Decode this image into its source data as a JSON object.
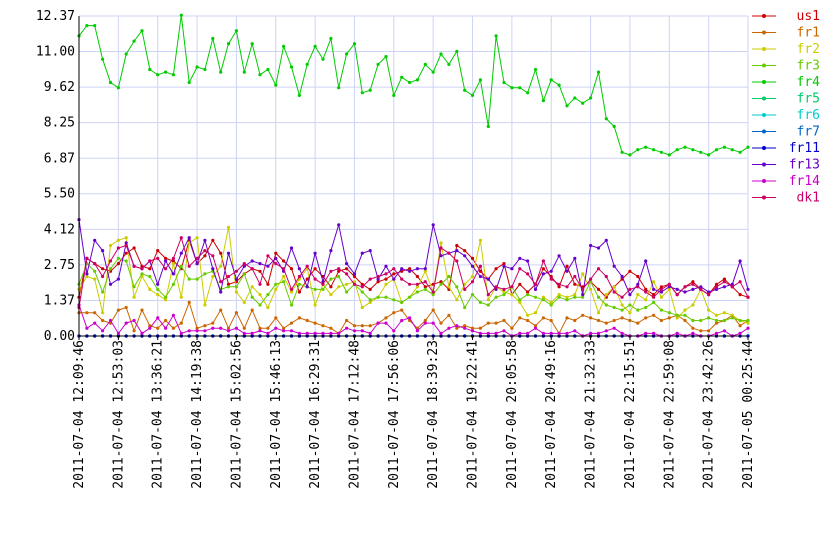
{
  "chart_data": {
    "type": "line",
    "title": "",
    "xlabel": "",
    "ylabel": "",
    "ylim": [
      0,
      12.37
    ],
    "y_ticks": [
      "0.00",
      "1.37",
      "2.75",
      "4.12",
      "5.50",
      "6.87",
      "8.25",
      "9.62",
      "11.00",
      "12.37"
    ],
    "x_tick_labels": [
      "2011-07-04 12:09:46",
      "2011-07-04 12:53:03",
      "2011-07-04 13:36:21",
      "2011-07-04 14:19:38",
      "2011-07-04 15:02:56",
      "2011-07-04 15:46:13",
      "2011-07-04 16:29:31",
      "2011-07-04 17:12:48",
      "2011-07-04 17:56:06",
      "2011-07-04 18:39:23",
      "2011-07-04 19:22:41",
      "2011-07-04 20:05:58",
      "2011-07-04 20:49:16",
      "2011-07-04 21:32:33",
      "2011-07-04 22:15:51",
      "2011-07-04 22:59:08",
      "2011-07-04 23:42:26",
      "2011-07-05 00:25:44"
    ],
    "points_per_series": 86,
    "grid": true,
    "legend_position": "right",
    "series": [
      {
        "name": "us1",
        "color": "#cc0000",
        "values": [
          1.5,
          3.0,
          2.8,
          2.6,
          2.5,
          2.8,
          3.2,
          3.4,
          2.7,
          2.6,
          3.3,
          3.0,
          2.9,
          2.6,
          3.7,
          2.8,
          3.1,
          3.7,
          3.2,
          2.0,
          2.1,
          2.4,
          2.6,
          2.5,
          2.0,
          3.2,
          2.9,
          2.6,
          1.7,
          2.2,
          2.6,
          2.3,
          1.9,
          2.5,
          2.6,
          2.3,
          2.0,
          1.8,
          2.1,
          2.2,
          2.4,
          2.5,
          2.6,
          2.3,
          1.9,
          2.0,
          2.1,
          1.8,
          3.5,
          3.3,
          3.0,
          2.5,
          2.2,
          2.6,
          2.8,
          1.6,
          2.0,
          1.7,
          2.0,
          2.6,
          2.3,
          1.9,
          2.7,
          2.0,
          1.9,
          2.1,
          1.8,
          1.5,
          1.9,
          2.2,
          2.5,
          2.3,
          1.8,
          1.6,
          1.9,
          2.0,
          1.6,
          1.9,
          2.1,
          1.8,
          1.6,
          2.0,
          2.2,
          1.9,
          1.6,
          1.5
        ]
      },
      {
        "name": "fr1",
        "color": "#cc6600",
        "values": [
          0.9,
          0.9,
          0.9,
          0.6,
          0.5,
          1.0,
          1.1,
          0.2,
          1.0,
          0.4,
          0.3,
          0.6,
          0.3,
          0.5,
          1.3,
          0.3,
          0.4,
          0.5,
          1.0,
          0.3,
          0.9,
          0.3,
          1.0,
          0.3,
          0.3,
          0.7,
          0.3,
          0.5,
          0.7,
          0.6,
          0.5,
          0.4,
          0.3,
          0.1,
          0.6,
          0.4,
          0.4,
          0.4,
          0.5,
          0.7,
          0.9,
          1.0,
          0.6,
          0.3,
          0.6,
          1.0,
          0.5,
          0.8,
          0.3,
          0.4,
          0.3,
          0.3,
          0.5,
          0.5,
          0.6,
          0.3,
          0.7,
          0.6,
          0.4,
          0.7,
          0.6,
          0.1,
          0.7,
          0.6,
          0.8,
          0.7,
          0.6,
          0.5,
          0.6,
          0.7,
          0.6,
          0.5,
          0.7,
          0.8,
          0.6,
          0.7,
          0.8,
          0.6,
          0.3,
          0.2,
          0.2,
          0.5,
          0.6,
          0.8,
          0.4,
          0.6
        ]
      },
      {
        "name": "fr2",
        "color": "#cccc00",
        "values": [
          1.8,
          2.3,
          2.2,
          0.9,
          3.5,
          3.7,
          3.8,
          1.5,
          2.3,
          1.8,
          1.6,
          1.4,
          2.8,
          1.5,
          3.6,
          3.8,
          1.2,
          2.3,
          2.7,
          4.2,
          1.7,
          1.3,
          1.9,
          1.6,
          1.1,
          1.8,
          2.3,
          1.7,
          2.2,
          2.6,
          1.2,
          2.0,
          1.6,
          1.9,
          2.0,
          2.1,
          1.1,
          1.3,
          1.5,
          2.0,
          2.2,
          1.3,
          1.5,
          1.9,
          2.5,
          1.7,
          3.6,
          1.9,
          1.4,
          2.0,
          2.3,
          3.7,
          1.4,
          1.9,
          1.7,
          1.6,
          1.3,
          0.8,
          0.9,
          1.5,
          1.3,
          1.6,
          1.5,
          1.6,
          2.4,
          1.8,
          0.9,
          1.6,
          1.9,
          1.2,
          0.9,
          1.6,
          1.4,
          2.1,
          1.5,
          1.8,
          0.7,
          1.0,
          1.2,
          1.8,
          1.0,
          0.8,
          0.9,
          0.8,
          0.6,
          0.5
        ]
      },
      {
        "name": "fr3",
        "color": "#66cc00",
        "values": [
          2.0,
          2.8,
          2.5,
          1.7,
          2.6,
          3.0,
          2.9,
          1.9,
          2.4,
          2.3,
          1.8,
          1.5,
          2.0,
          2.7,
          2.2,
          2.2,
          2.4,
          2.5,
          1.8,
          1.9,
          1.9,
          2.4,
          1.5,
          1.2,
          1.6,
          2.0,
          2.1,
          1.2,
          2.0,
          1.9,
          1.8,
          1.8,
          2.2,
          2.3,
          1.7,
          2.0,
          1.7,
          1.4,
          1.5,
          1.5,
          1.4,
          1.3,
          1.5,
          1.7,
          1.8,
          1.6,
          2.0,
          2.3,
          1.9,
          1.1,
          1.6,
          1.3,
          1.2,
          1.5,
          1.6,
          1.9,
          1.4,
          1.6,
          1.5,
          1.4,
          1.2,
          1.5,
          1.4,
          1.5,
          1.5,
          2.1,
          1.5,
          1.2,
          1.1,
          1.0,
          1.2,
          1.0,
          1.1,
          1.3,
          1.0,
          0.9,
          0.8,
          0.8,
          0.6,
          0.6,
          0.7,
          0.6,
          0.6,
          0.7,
          0.6,
          0.6
        ]
      },
      {
        "name": "fr4",
        "color": "#00cc00",
        "values": [
          11.6,
          12.0,
          12.0,
          10.7,
          9.8,
          9.6,
          10.9,
          11.4,
          11.8,
          10.3,
          10.1,
          10.2,
          10.1,
          12.4,
          9.8,
          10.4,
          10.3,
          11.5,
          10.2,
          11.3,
          11.8,
          10.2,
          11.3,
          10.1,
          10.3,
          9.7,
          11.2,
          10.4,
          9.3,
          10.5,
          11.2,
          10.7,
          11.5,
          9.6,
          10.9,
          11.3,
          9.4,
          9.5,
          10.5,
          10.8,
          9.3,
          10.0,
          9.8,
          9.9,
          10.5,
          10.2,
          10.9,
          10.5,
          11.0,
          9.5,
          9.3,
          9.9,
          8.1,
          11.6,
          9.8,
          9.6,
          9.6,
          9.4,
          10.3,
          9.1,
          9.9,
          9.7,
          8.9,
          9.2,
          9.0,
          9.2,
          10.2,
          8.4,
          8.1,
          7.1,
          7.0,
          7.2,
          7.3,
          7.2,
          7.1,
          7.0,
          7.2,
          7.3,
          7.2,
          7.1,
          7.0,
          7.2,
          7.3,
          7.2,
          7.1,
          7.3
        ]
      },
      {
        "name": "fr5",
        "color": "#00cc66",
        "values": [
          0.0,
          0.0,
          0.0,
          0.0,
          0.0,
          0.0,
          0.0,
          0.0,
          0.0,
          0.0,
          0.0,
          0.0,
          0.0,
          0.0,
          0.0,
          0.0,
          0.0,
          0.0,
          0.0,
          0.0,
          0.0,
          0.0,
          0.0,
          0.0,
          0.0,
          0.0,
          0.0,
          0.0,
          0.0,
          0.0,
          0.0,
          0.0,
          0.0,
          0.0,
          0.0,
          0.0,
          0.0,
          0.0,
          0.0,
          0.0,
          0.0,
          0.0,
          0.0,
          0.0,
          0.0,
          0.0,
          0.0,
          0.0,
          0.0,
          0.0,
          0.0,
          0.0,
          0.0,
          0.0,
          0.0,
          0.0,
          0.0,
          0.0,
          0.0,
          0.0,
          0.0,
          0.0,
          0.0,
          0.0,
          0.0,
          0.0,
          0.0,
          0.0,
          0.0,
          0.0,
          0.0,
          0.0,
          0.0,
          0.0,
          0.0,
          0.0,
          0.0,
          0.0,
          0.0,
          0.0,
          0.0,
          0.0,
          0.0,
          0.0,
          0.0,
          0.0
        ]
      },
      {
        "name": "fr6",
        "color": "#00cccc",
        "values": [
          0.0,
          0.0,
          0.0,
          0.0,
          0.0,
          0.0,
          0.0,
          0.0,
          0.0,
          0.0,
          0.0,
          0.0,
          0.0,
          0.0,
          0.0,
          0.0,
          0.0,
          0.0,
          0.0,
          0.0,
          0.0,
          0.0,
          0.0,
          0.0,
          0.0,
          0.0,
          0.0,
          0.0,
          0.0,
          0.0,
          0.0,
          0.0,
          0.0,
          0.0,
          0.0,
          0.0,
          0.0,
          0.0,
          0.0,
          0.0,
          0.0,
          0.0,
          0.0,
          0.0,
          0.0,
          0.0,
          0.0,
          0.0,
          0.0,
          0.0,
          0.0,
          0.0,
          0.0,
          0.0,
          0.0,
          0.0,
          0.0,
          0.0,
          0.0,
          0.0,
          0.0,
          0.0,
          0.0,
          0.0,
          0.0,
          0.0,
          0.0,
          0.0,
          0.0,
          0.0,
          0.0,
          0.0,
          0.0,
          0.0,
          0.0,
          0.0,
          0.0,
          0.0,
          0.0,
          0.0,
          0.0,
          0.0,
          0.0,
          0.0,
          0.0,
          0.0
        ]
      },
      {
        "name": "fr7",
        "color": "#0066cc",
        "values": [
          0.0,
          0.0,
          0.0,
          0.0,
          0.0,
          0.0,
          0.0,
          0.0,
          0.0,
          0.0,
          0.0,
          0.0,
          0.0,
          0.0,
          0.0,
          0.0,
          0.0,
          0.0,
          0.0,
          0.0,
          0.0,
          0.0,
          0.0,
          0.0,
          0.0,
          0.0,
          0.0,
          0.0,
          0.0,
          0.0,
          0.0,
          0.0,
          0.0,
          0.0,
          0.0,
          0.0,
          0.0,
          0.0,
          0.0,
          0.0,
          0.0,
          0.0,
          0.0,
          0.0,
          0.0,
          0.0,
          0.0,
          0.0,
          0.0,
          0.0,
          0.0,
          0.0,
          0.0,
          0.0,
          0.0,
          0.0,
          0.0,
          0.0,
          0.0,
          0.0,
          0.0,
          0.0,
          0.0,
          0.0,
          0.0,
          0.0,
          0.0,
          0.0,
          0.0,
          0.0,
          0.0,
          0.0,
          0.0,
          0.0,
          0.0,
          0.0,
          0.0,
          0.0,
          0.0,
          0.0,
          0.0,
          0.0,
          0.0,
          0.0,
          0.0,
          0.0
        ]
      },
      {
        "name": "fr11",
        "color": "#0000cc",
        "values": [
          0.0,
          0.0,
          0.0,
          0.0,
          0.0,
          0.0,
          0.0,
          0.0,
          0.0,
          0.0,
          0.0,
          0.0,
          0.0,
          0.0,
          0.0,
          0.0,
          0.0,
          0.0,
          0.0,
          0.0,
          0.0,
          0.0,
          0.0,
          0.0,
          0.0,
          0.0,
          0.0,
          0.0,
          0.0,
          0.0,
          0.0,
          0.0,
          0.0,
          0.0,
          0.0,
          0.0,
          0.0,
          0.0,
          0.0,
          0.0,
          0.0,
          0.0,
          0.0,
          0.0,
          0.0,
          0.0,
          0.0,
          0.0,
          0.0,
          0.0,
          0.0,
          0.0,
          0.0,
          0.0,
          0.0,
          0.0,
          0.0,
          0.0,
          0.0,
          0.0,
          0.0,
          0.0,
          0.0,
          0.0,
          0.0,
          0.0,
          0.0,
          0.0,
          0.0,
          0.0,
          0.0,
          0.0,
          0.0,
          0.0,
          0.0,
          0.0,
          0.0,
          0.0,
          0.0,
          0.0,
          0.0,
          0.0,
          0.0,
          0.0,
          0.0,
          0.0
        ]
      },
      {
        "name": "fr13",
        "color": "#6600cc",
        "values": [
          4.5,
          2.4,
          3.7,
          3.3,
          2.0,
          2.2,
          3.6,
          2.7,
          2.6,
          2.9,
          2.0,
          2.9,
          2.4,
          3.2,
          3.8,
          2.8,
          3.7,
          2.6,
          1.7,
          3.2,
          2.2,
          2.7,
          2.9,
          2.8,
          2.7,
          3.0,
          2.5,
          3.4,
          2.6,
          1.9,
          3.2,
          2.1,
          3.3,
          4.3,
          2.8,
          2.4,
          3.2,
          3.3,
          2.2,
          2.7,
          2.2,
          2.6,
          2.5,
          2.6,
          2.6,
          4.3,
          3.1,
          3.2,
          3.3,
          3.1,
          2.7,
          2.3,
          2.2,
          1.8,
          2.7,
          2.6,
          3.0,
          2.9,
          1.8,
          2.4,
          2.5,
          3.1,
          2.5,
          3.0,
          1.6,
          3.5,
          3.4,
          3.7,
          2.7,
          2.3,
          1.6,
          2.0,
          2.9,
          1.8,
          1.7,
          1.9,
          1.8,
          1.7,
          1.8,
          1.9,
          1.7,
          1.8,
          1.9,
          2.0,
          2.9,
          1.8
        ]
      },
      {
        "name": "fr14",
        "color": "#cc00cc",
        "values": [
          1.2,
          0.3,
          0.5,
          0.2,
          0.6,
          0.1,
          0.5,
          0.6,
          0.1,
          0.3,
          0.7,
          0.3,
          0.8,
          0.1,
          0.2,
          0.2,
          0.2,
          0.3,
          0.3,
          0.2,
          0.3,
          0.1,
          0.1,
          0.2,
          0.1,
          0.3,
          0.2,
          0.2,
          0.1,
          0.1,
          0.1,
          0.1,
          0.1,
          0.1,
          0.3,
          0.2,
          0.2,
          0.1,
          0.5,
          0.5,
          0.2,
          0.6,
          0.7,
          0.2,
          0.5,
          0.5,
          0.1,
          0.3,
          0.4,
          0.3,
          0.2,
          0.1,
          0.1,
          0.1,
          0.2,
          0.0,
          0.1,
          0.1,
          0.3,
          0.1,
          0.1,
          0.1,
          0.1,
          0.2,
          0.0,
          0.1,
          0.1,
          0.2,
          0.3,
          0.1,
          0.0,
          0.0,
          0.1,
          0.1,
          0.0,
          0.0,
          0.1,
          0.0,
          0.1,
          0.0,
          0.0,
          0.1,
          0.2,
          0.0,
          0.1,
          0.3
        ]
      },
      {
        "name": "dk1",
        "color": "#cc0066",
        "values": [
          1.1,
          3.0,
          2.8,
          2.3,
          2.9,
          3.4,
          3.5,
          2.7,
          2.6,
          2.9,
          3.0,
          2.6,
          3.0,
          3.8,
          2.7,
          3.0,
          3.3,
          3.1,
          2.1,
          2.3,
          2.5,
          2.8,
          2.6,
          2.0,
          3.1,
          2.8,
          2.6,
          1.8,
          2.3,
          2.7,
          2.2,
          2.0,
          2.5,
          2.6,
          2.4,
          2.0,
          1.9,
          2.2,
          2.3,
          2.4,
          2.6,
          2.2,
          2.0,
          2.0,
          2.1,
          1.7,
          3.4,
          3.2,
          2.9,
          1.8,
          2.1,
          2.7,
          1.6,
          1.9,
          1.8,
          1.9,
          2.6,
          2.4,
          2.0,
          2.9,
          2.2,
          2.0,
          1.9,
          2.3,
          1.8,
          2.2,
          2.6,
          2.3,
          1.7,
          1.5,
          1.8,
          1.9,
          1.7,
          1.5,
          1.8,
          2.0,
          1.6,
          1.9,
          2.0,
          1.8,
          1.6,
          1.9,
          2.1,
          1.9,
          2.1,
          1.5
        ]
      }
    ]
  }
}
